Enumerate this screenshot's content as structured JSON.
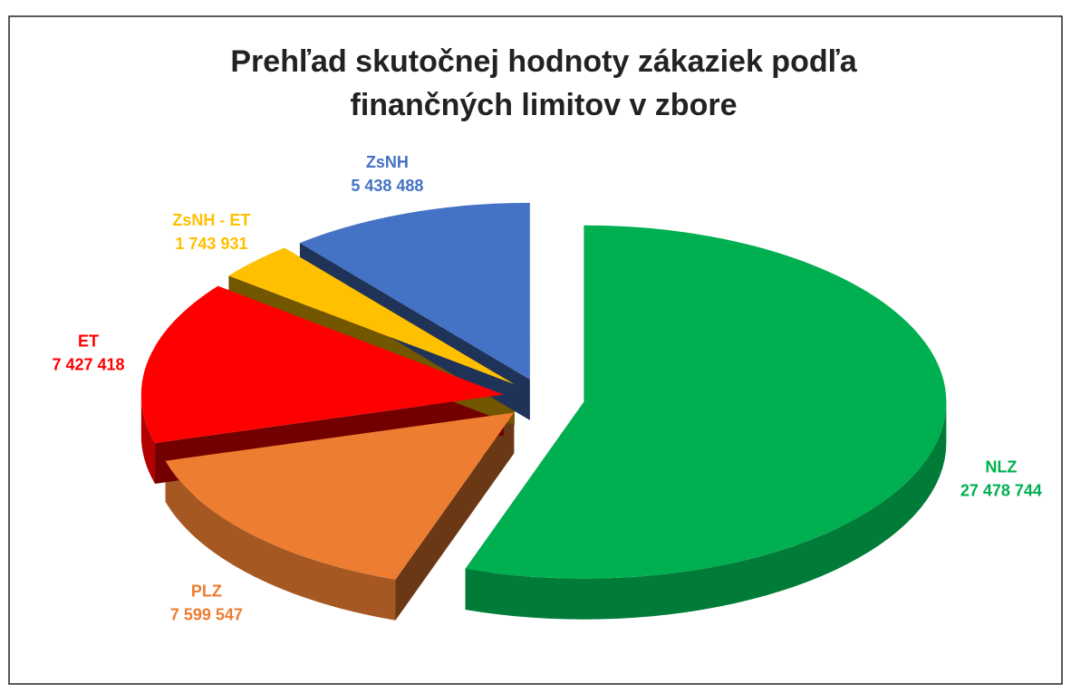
{
  "chart_data": {
    "type": "pie",
    "title": [
      "Prehľad skutočnej hodnoty zákaziek podľa",
      "finančných limitov v zbore"
    ],
    "categories": [
      "NLZ",
      "PLZ",
      "ET",
      "ZsNH - ET",
      "ZsNH"
    ],
    "values": [
      27478744,
      7599547,
      7427418,
      1743931,
      5438488
    ],
    "value_labels": [
      "27 478 744",
      "7 599 547",
      "7 427 418",
      "1 743 931",
      "5 438 488"
    ],
    "colors": [
      "#00b050",
      "#ed7d31",
      "#ff0000",
      "#ffc000",
      "#4472c4"
    ]
  }
}
